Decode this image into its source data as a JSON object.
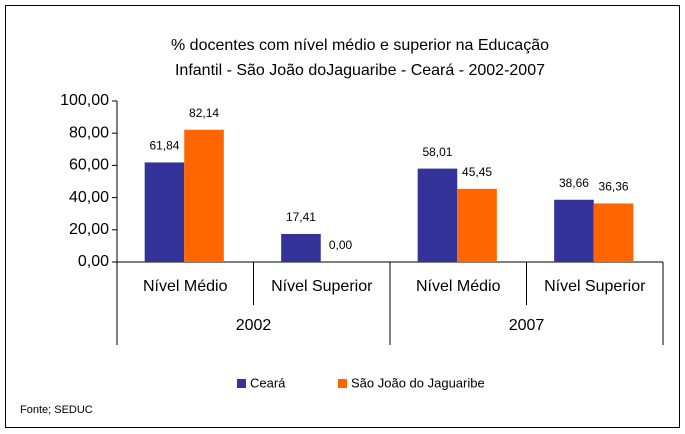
{
  "chart_data": {
    "type": "bar",
    "title": [
      "% docentes com nível médio e superior na  Educação",
      "Infantil - São João doJaguaribe  - Ceará - 2002-2007"
    ],
    "categories": [
      "Nível Médio",
      "Nível Superior",
      "Nível Médio",
      "Nível Superior"
    ],
    "x_groups": [
      "2002",
      "2002",
      "2007",
      "2007"
    ],
    "series": [
      {
        "name": "Ceará",
        "color": "#333399",
        "values": [
          61.84,
          17.41,
          58.01,
          38.66
        ],
        "value_labels": [
          "61,84",
          "17,41",
          "58,01",
          "38,66"
        ]
      },
      {
        "name": "São João do Jaguaribe",
        "color": "#ff6600",
        "values": [
          82.14,
          0,
          45.45,
          36.36
        ],
        "value_labels": [
          "82,14",
          "0,00",
          "45,45",
          "36,36"
        ]
      }
    ],
    "ylim": [
      0,
      100
    ],
    "yticks": [
      {
        "value": 0,
        "label": "0,00"
      },
      {
        "value": 20,
        "label": "20,00"
      },
      {
        "value": 40,
        "label": "40,00"
      },
      {
        "value": 60,
        "label": "60,00"
      },
      {
        "value": 80,
        "label": "80,00"
      },
      {
        "value": 100,
        "label": "100,00"
      }
    ],
    "legend": "bottom",
    "source": "Fonte; SEDUC"
  }
}
